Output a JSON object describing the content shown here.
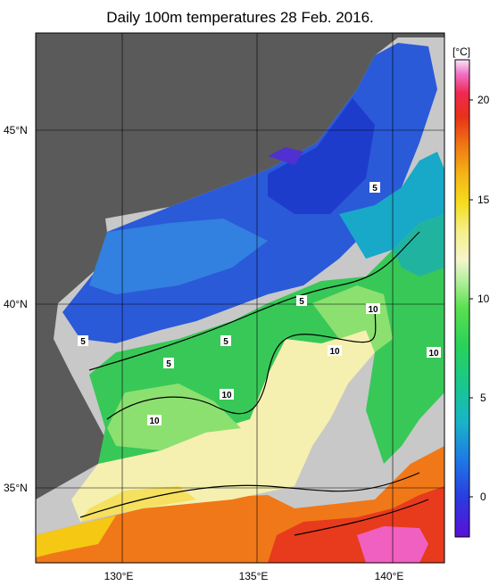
{
  "title": "Daily 100m temperatures 28 Feb. 2016.",
  "axes": {
    "x_ticks": [
      "130°E",
      "135°E",
      "140°E"
    ],
    "y_ticks": [
      "45°N",
      "40°N",
      "35°N"
    ]
  },
  "colorbar": {
    "unit": "[°C]",
    "ticks": [
      "20",
      "15",
      "10",
      "5",
      "0"
    ],
    "range": [
      -2,
      22
    ]
  },
  "contour_labels": [
    "5",
    "5",
    "5",
    "5",
    "5",
    "10",
    "10",
    "10",
    "10",
    "10"
  ],
  "colors": {
    "land": "#5a5a5a",
    "nodata": "#c8c8c8",
    "grid": "#000000"
  }
}
